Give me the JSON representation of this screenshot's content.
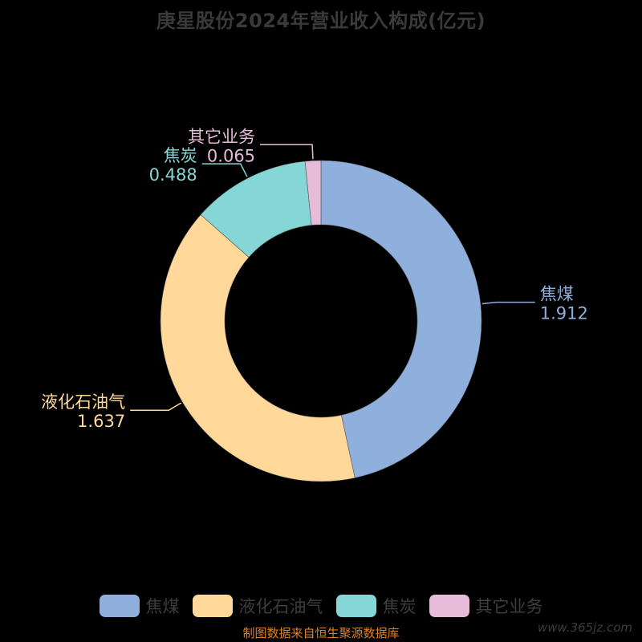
{
  "title": "庚星股份2024年营业收入构成(亿元)",
  "source_note": "制图数据来自恒生聚源数据库",
  "watermark": "www.365jz.com",
  "chart_data": {
    "type": "pie",
    "variant": "donut",
    "title": "庚星股份2024年营业收入构成(亿元)",
    "unit": "亿元",
    "legend_position": "bottom",
    "slices": [
      {
        "label": "焦煤",
        "value": 1.912,
        "value_text": "1.912",
        "color": "#8fafdc"
      },
      {
        "label": "液化石油气",
        "value": 1.637,
        "value_text": "1.637",
        "color": "#ffd89a"
      },
      {
        "label": "焦炭",
        "value": 0.488,
        "value_text": "0.488",
        "color": "#85d6d6"
      },
      {
        "label": "其它业务",
        "value": 0.065,
        "value_text": "0.065",
        "color": "#e6bcd9"
      }
    ]
  }
}
